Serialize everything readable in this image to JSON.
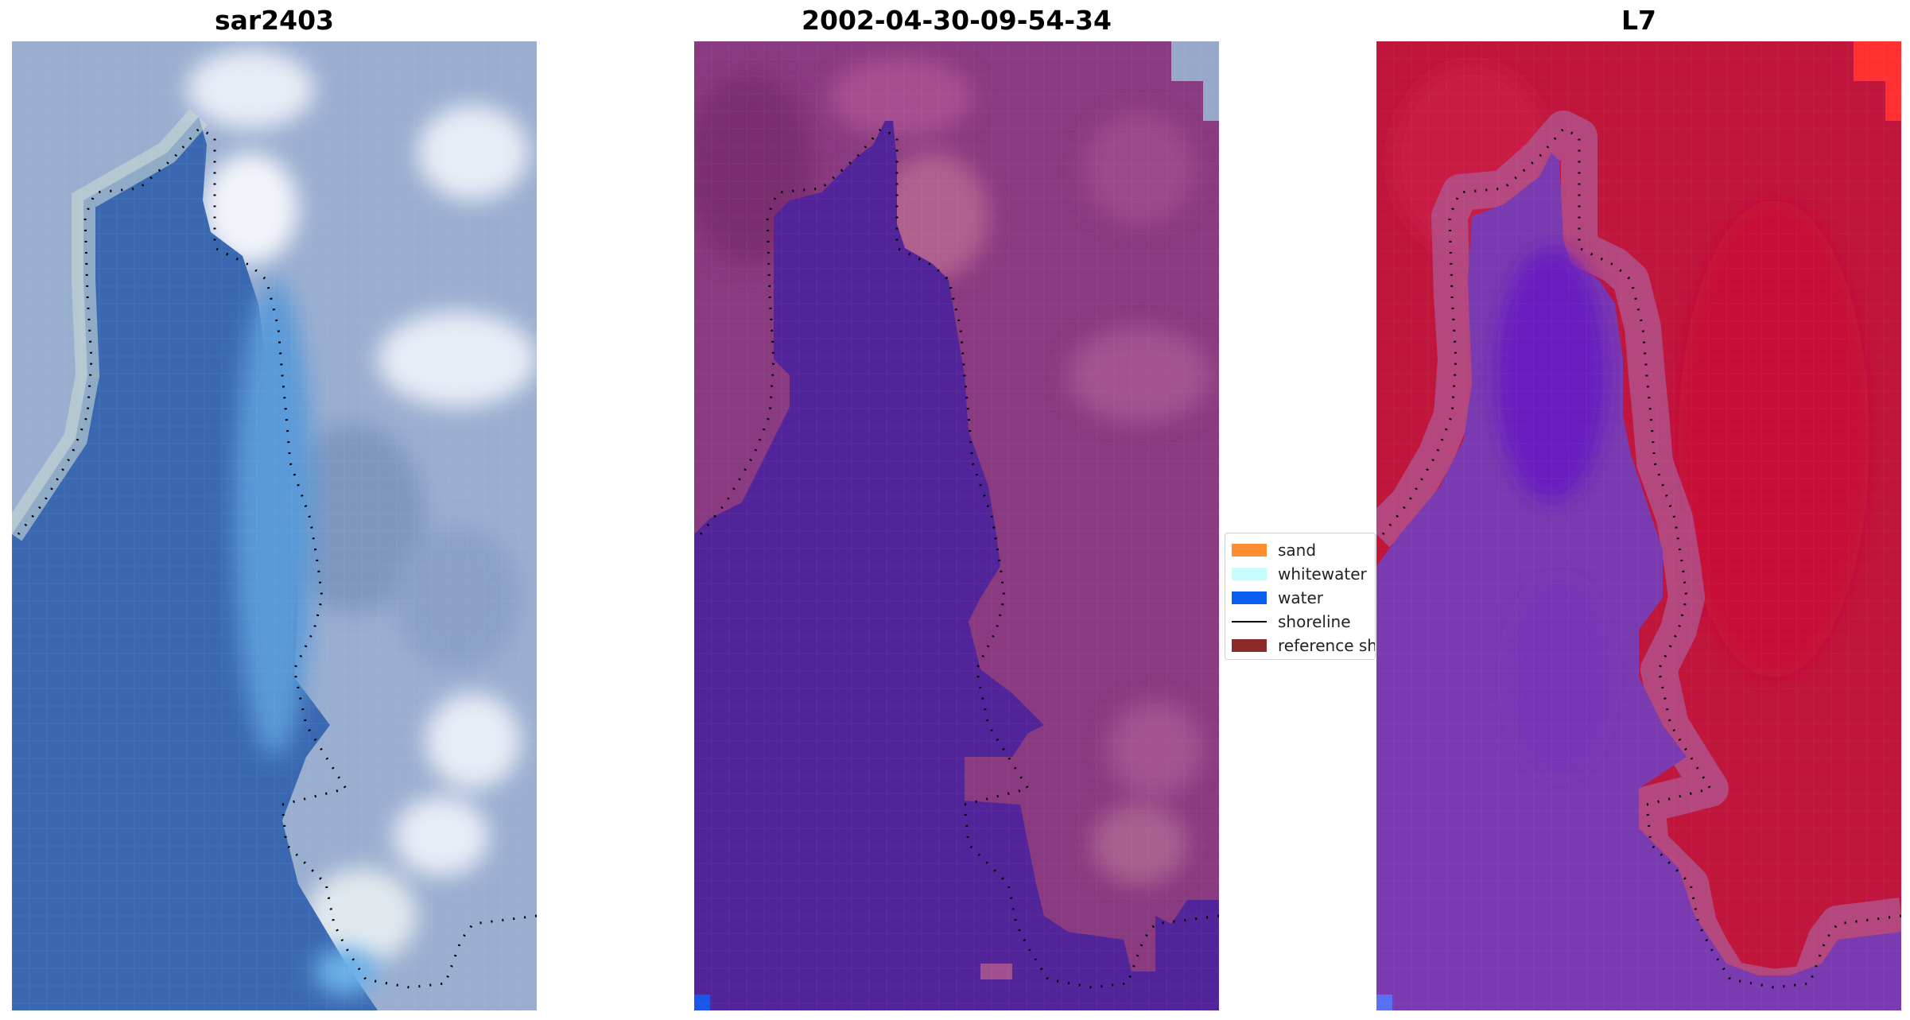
{
  "panels": [
    {
      "title": "sar2403",
      "kind": "rgb",
      "palette": {
        "water": "#3a68b0",
        "water_light": "#5a9ad8",
        "land": "#9aaed0",
        "cloud": "#e8ecf6",
        "shore": "#c8d8d4"
      }
    },
    {
      "title": "2002-04-30-09-54-34",
      "kind": "classified",
      "palette": {
        "water": "#52249a",
        "land": "#8a3a80",
        "land_light": "#b0608f",
        "corner": "#98a8c8",
        "water_pixel": "#1a56e8"
      }
    },
    {
      "title": "L7",
      "kind": "index",
      "palette": {
        "water": "#7a3ab0",
        "water_dark": "#6a1cc0",
        "land": "#c0163c",
        "boundary": "#b0508a",
        "corner": "#ff3030",
        "water_pixel": "#5a70f0"
      }
    }
  ],
  "legend": {
    "items": [
      {
        "label": "sand",
        "color": "#ff8c2e",
        "type": "patch",
        "icon": "sand-swatch-icon"
      },
      {
        "label": "whitewater",
        "color": "#c8fdfd",
        "type": "patch",
        "icon": "whitewater-swatch-icon"
      },
      {
        "label": "water",
        "color": "#0a5ff0",
        "type": "patch",
        "icon": "water-swatch-icon"
      },
      {
        "label": "shoreline",
        "color": "#000000",
        "type": "line",
        "icon": "shoreline-line-icon"
      },
      {
        "label": "reference shoreline",
        "color": "#8c2a2a",
        "type": "patch",
        "icon": "reference-shoreline-swatch-icon"
      }
    ]
  }
}
